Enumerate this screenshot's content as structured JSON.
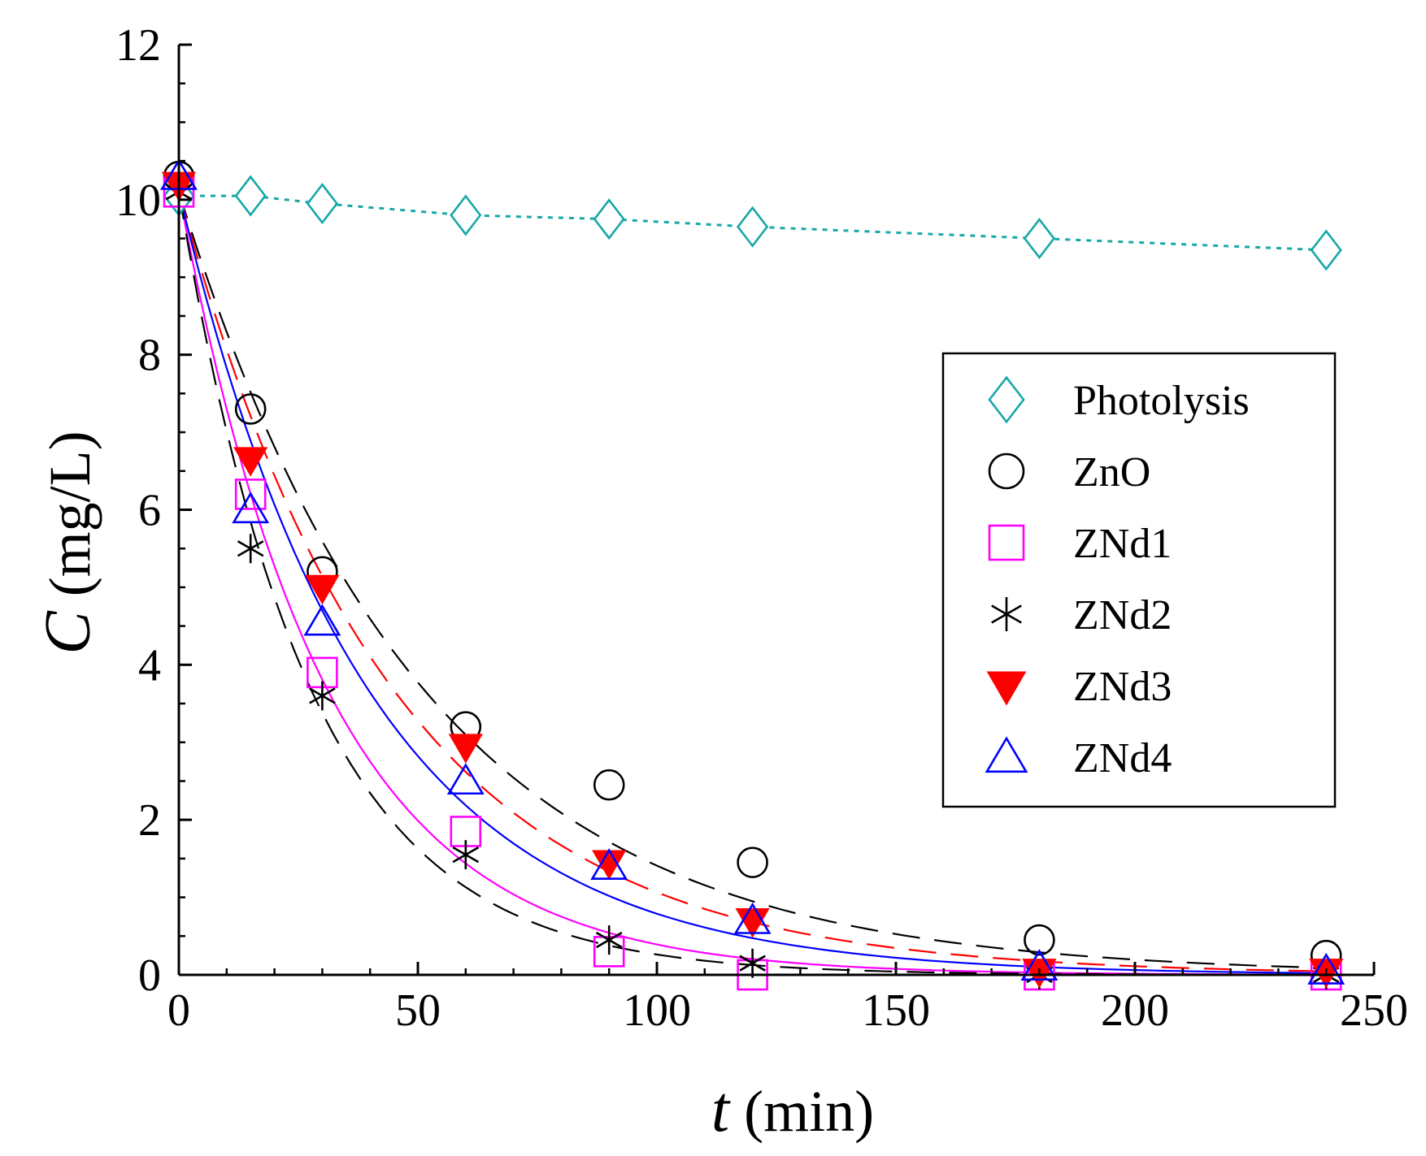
{
  "chart_data": {
    "type": "scatter",
    "title": "",
    "xlabel_var": "t",
    "xlabel_unit": "(min)",
    "ylabel_var": "C",
    "ylabel_unit": "(mg/L)",
    "xlim": [
      0,
      250
    ],
    "ylim": [
      0,
      12
    ],
    "x_ticks": [
      "0",
      "50",
      "100",
      "150",
      "200",
      "250"
    ],
    "y_ticks": [
      "0",
      "2",
      "4",
      "6",
      "8",
      "10",
      "12"
    ],
    "grid": false,
    "legend_position": "right",
    "x": [
      0,
      15,
      30,
      60,
      90,
      120,
      180,
      240
    ],
    "series": [
      {
        "name": "Photolysis",
        "marker": "diamond-open",
        "color": "#17a8a8",
        "values": [
          10.05,
          10.05,
          9.95,
          9.8,
          9.75,
          9.65,
          9.5,
          9.35
        ],
        "fit": "connect",
        "line_style": "dotted"
      },
      {
        "name": "ZnO",
        "marker": "circle-open",
        "color": "#000000",
        "values": [
          10.3,
          7.3,
          5.2,
          3.2,
          2.45,
          1.45,
          0.45,
          0.25
        ],
        "fit_k": 0.0197,
        "line_style": "dashed"
      },
      {
        "name": "ZNd1",
        "marker": "square-open",
        "color": "#ff00ff",
        "values": [
          10.1,
          6.2,
          3.9,
          1.85,
          0.3,
          0.0,
          0.0,
          0.0
        ],
        "fit_k": 0.0325,
        "line_style": "solid"
      },
      {
        "name": "ZNd2",
        "marker": "asterisk",
        "color": "#000000",
        "values": [
          10.1,
          5.5,
          3.6,
          1.55,
          0.45,
          0.15,
          0.0,
          0.0
        ],
        "fit_k": 0.0365,
        "line_style": "dashed"
      },
      {
        "name": "ZNd3",
        "marker": "triangle-down-filled",
        "color": "#ff0000",
        "values": [
          10.2,
          6.65,
          5.0,
          2.95,
          1.45,
          0.7,
          0.05,
          0.05
        ],
        "fit_k": 0.0225,
        "line_style": "dashed"
      },
      {
        "name": "ZNd4",
        "marker": "triangle-up-open",
        "color": "#0000ff",
        "values": [
          10.3,
          6.0,
          4.55,
          2.5,
          1.4,
          0.7,
          0.1,
          0.05
        ],
        "fit_k": 0.0255,
        "line_style": "solid"
      }
    ],
    "fit_c0": 10.1
  }
}
